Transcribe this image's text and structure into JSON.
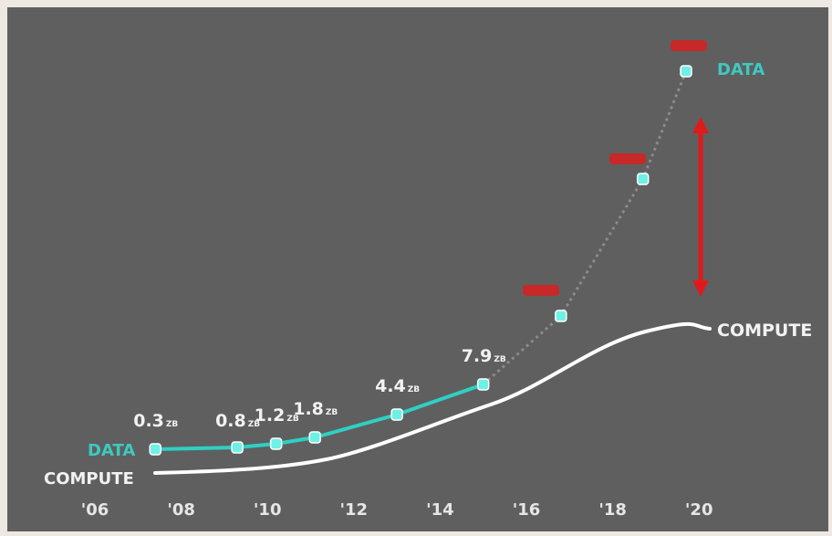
{
  "chart_data": {
    "type": "line",
    "xlabel": "",
    "ylabel": "",
    "x_ticks": [
      "'06",
      "'08",
      "'10",
      "'12",
      "'14",
      "'16",
      "'18",
      "'20"
    ],
    "series": [
      {
        "name": "DATA",
        "color": "#2fd0c4",
        "points": [
          {
            "x": 2007.4,
            "label": "0.3",
            "unit": "ZB"
          },
          {
            "x": 2009.3,
            "label": "0.8",
            "unit": "ZB"
          },
          {
            "x": 2010.2,
            "label": "1.2",
            "unit": "ZB"
          },
          {
            "x": 2011.1,
            "label": "1.8",
            "unit": "ZB"
          },
          {
            "x": 2013.0,
            "label": "4.4",
            "unit": "ZB"
          },
          {
            "x": 2015.0,
            "label": "7.9",
            "unit": "ZB"
          },
          {
            "x": 2016.8,
            "label": "",
            "unit": "ZB"
          },
          {
            "x": 2018.7,
            "label": "",
            "unit": "ZB"
          },
          {
            "x": 2019.7,
            "label": "",
            "unit": "ZB"
          }
        ]
      },
      {
        "name": "COMPUTE",
        "color": "#ffffff"
      }
    ],
    "gap_arrow_color": "#e01a1a"
  }
}
